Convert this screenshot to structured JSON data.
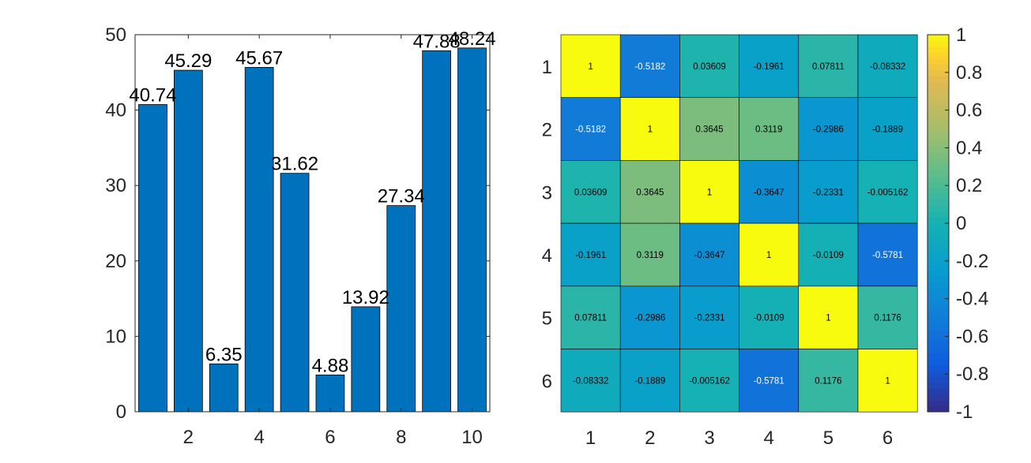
{
  "chart_data": [
    {
      "type": "bar",
      "x": [
        1,
        2,
        3,
        4,
        5,
        6,
        7,
        8,
        9,
        10
      ],
      "values": [
        40.74,
        45.29,
        6.35,
        45.67,
        31.62,
        4.88,
        13.92,
        27.34,
        47.88,
        48.24
      ],
      "data_labels": [
        "40.74",
        "45.29",
        "6.35",
        "45.67",
        "31.62",
        "4.88",
        "13.92",
        "27.34",
        "47.88",
        "48.24"
      ],
      "xlim": [
        0.5,
        10.5
      ],
      "ylim": [
        0,
        50
      ],
      "xticks": [
        2,
        4,
        6,
        8,
        10
      ],
      "yticks": [
        0,
        10,
        20,
        30,
        40,
        50
      ],
      "bar_color": "#0072BD",
      "grid": false
    },
    {
      "type": "heatmap",
      "rows": [
        "1",
        "2",
        "3",
        "4",
        "5",
        "6"
      ],
      "columns": [
        "1",
        "2",
        "3",
        "4",
        "5",
        "6"
      ],
      "values": [
        [
          1,
          -0.5182,
          0.03609,
          -0.1961,
          0.07811,
          -0.08332
        ],
        [
          -0.5182,
          1,
          0.3645,
          0.3119,
          -0.2986,
          -0.1889
        ],
        [
          0.03609,
          0.3645,
          1,
          -0.3647,
          -0.2331,
          -0.005162
        ],
        [
          -0.1961,
          0.3119,
          -0.3647,
          1,
          -0.0109,
          -0.5781
        ],
        [
          0.07811,
          -0.2986,
          -0.2331,
          -0.0109,
          1,
          0.1176
        ],
        [
          -0.08332,
          -0.1889,
          -0.005162,
          -0.5781,
          0.1176,
          1
        ]
      ],
      "cell_labels": [
        [
          "1",
          "-0.5182",
          "0.03609",
          "-0.1961",
          "0.07811",
          "-0.08332"
        ],
        [
          "-0.5182",
          "1",
          "0.3645",
          "0.3119",
          "-0.2986",
          "-0.1889"
        ],
        [
          "0.03609",
          "0.3645",
          "1",
          "-0.3647",
          "-0.2331",
          "-0.005162"
        ],
        [
          "-0.1961",
          "0.3119",
          "-0.3647",
          "1",
          "-0.0109",
          "-0.5781"
        ],
        [
          "0.07811",
          "-0.2986",
          "-0.2331",
          "-0.0109",
          "1",
          "0.1176"
        ],
        [
          "-0.08332",
          "-0.1889",
          "-0.005162",
          "-0.5781",
          "0.1176",
          "1"
        ]
      ],
      "colormap": "parula",
      "clim": [
        -1,
        1
      ],
      "colorbar_ticks": [
        "1",
        "0.8",
        "0.6",
        "0.4",
        "0.2",
        "0",
        "-0.2",
        "-0.4",
        "-0.6",
        "-0.8",
        "-1"
      ]
    }
  ]
}
